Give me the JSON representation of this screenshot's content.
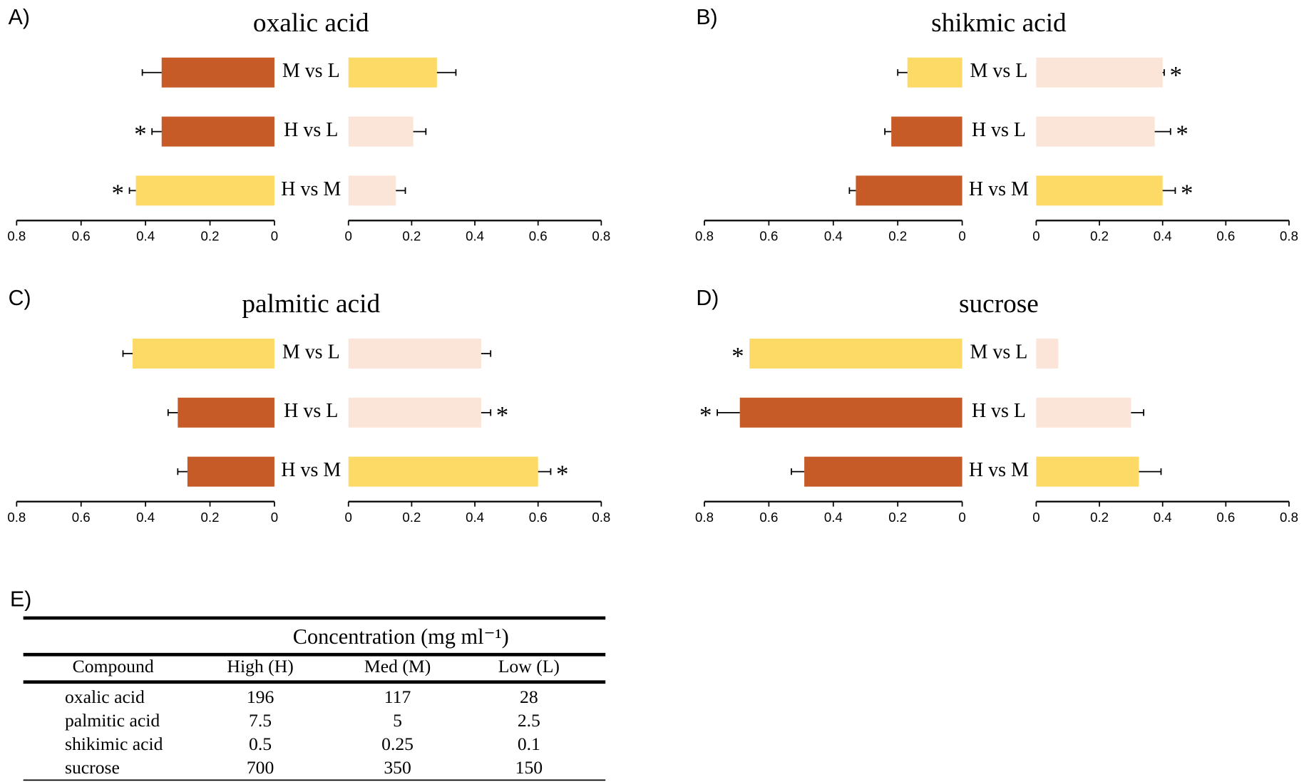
{
  "chart_data": [
    {
      "type": "diverging-bar",
      "panel": "A)",
      "title": "oxalic acid",
      "categories": [
        "M vs L",
        "H vs L",
        "H vs M"
      ],
      "left": {
        "xlim": [
          0.8,
          0
        ],
        "xticks": [
          0.8,
          0.6,
          0.4,
          0.2,
          0
        ],
        "values": [
          0.35,
          0.35,
          0.43
        ],
        "errors": [
          0.06,
          0.03,
          0.02
        ],
        "colors": [
          "#c65b28",
          "#c65b28",
          "#fdd966"
        ],
        "markers": [
          null,
          "*",
          "*"
        ]
      },
      "right": {
        "xlim": [
          0,
          0.8
        ],
        "xticks": [
          0,
          0.2,
          0.4,
          0.6,
          0.8
        ],
        "values": [
          0.28,
          0.205,
          0.15
        ],
        "errors": [
          0.06,
          0.04,
          0.03
        ],
        "colors": [
          "#fdd966",
          "#fbe5d8",
          "#fbe5d8"
        ],
        "markers": [
          null,
          null,
          null
        ]
      }
    },
    {
      "type": "diverging-bar",
      "panel": "B)",
      "title": "shikmic acid",
      "categories": [
        "M vs L",
        "H vs L",
        "H vs M"
      ],
      "left": {
        "xlim": [
          0.8,
          0
        ],
        "xticks": [
          0.8,
          0.6,
          0.4,
          0.2,
          0
        ],
        "values": [
          0.17,
          0.22,
          0.33
        ],
        "errors": [
          0.03,
          0.02,
          0.02
        ],
        "colors": [
          "#fdd966",
          "#c65b28",
          "#c65b28"
        ],
        "markers": [
          null,
          null,
          null
        ]
      },
      "right": {
        "xlim": [
          0,
          0.8
        ],
        "xticks": [
          0,
          0.2,
          0.4,
          0.6,
          0.8
        ],
        "values": [
          0.4,
          0.375,
          0.4
        ],
        "errors": [
          0.005,
          0.05,
          0.04
        ],
        "colors": [
          "#fbe5d8",
          "#fbe5d8",
          "#fdd966"
        ],
        "markers": [
          "*",
          "*",
          "*"
        ]
      }
    },
    {
      "type": "diverging-bar",
      "panel": "C)",
      "title": "palmitic acid",
      "categories": [
        "M vs L",
        "H vs L",
        "H vs M"
      ],
      "left": {
        "xlim": [
          0.8,
          0
        ],
        "xticks": [
          0.8,
          0.6,
          0.4,
          0.2,
          0
        ],
        "values": [
          0.44,
          0.3,
          0.27
        ],
        "errors": [
          0.03,
          0.03,
          0.03
        ],
        "colors": [
          "#fdd966",
          "#c65b28",
          "#c65b28"
        ],
        "markers": [
          null,
          null,
          null
        ]
      },
      "right": {
        "xlim": [
          0,
          0.8
        ],
        "xticks": [
          0,
          0.2,
          0.4,
          0.6,
          0.8
        ],
        "values": [
          0.42,
          0.42,
          0.6
        ],
        "errors": [
          0.03,
          0.03,
          0.04
        ],
        "colors": [
          "#fbe5d8",
          "#fbe5d8",
          "#fdd966"
        ],
        "markers": [
          null,
          "*",
          "*"
        ]
      }
    },
    {
      "type": "diverging-bar",
      "panel": "D)",
      "title": "sucrose",
      "categories": [
        "M vs L",
        "H vs L",
        "H vs M"
      ],
      "left": {
        "xlim": [
          0.8,
          0
        ],
        "xticks": [
          0.8,
          0.6,
          0.4,
          0.2,
          0
        ],
        "values": [
          0.66,
          0.69,
          0.49
        ],
        "errors": [
          null,
          0.07,
          0.04
        ],
        "colors": [
          "#fdd966",
          "#c65b28",
          "#c65b28"
        ],
        "markers": [
          "*",
          "*",
          null
        ]
      },
      "right": {
        "xlim": [
          0,
          0.8
        ],
        "xticks": [
          0,
          0.2,
          0.4,
          0.6,
          0.8
        ],
        "values": [
          0.07,
          0.3,
          0.325
        ],
        "errors": [
          null,
          0.04,
          0.07
        ],
        "colors": [
          "#fbe5d8",
          "#fbe5d8",
          "#fdd966"
        ],
        "markers": [
          null,
          null,
          null
        ]
      }
    }
  ],
  "table": {
    "panel": "E)",
    "title": "Concentration (mg ml⁻¹)",
    "columns": [
      "Compound",
      "High (H)",
      "Med (M)",
      "Low (L)"
    ],
    "rows": [
      [
        "oxalic acid",
        "196",
        "117",
        "28"
      ],
      [
        "palmitic acid",
        "7.5",
        "5",
        "2.5"
      ],
      [
        "shikimic acid",
        "0.5",
        "0.25",
        "0.1"
      ],
      [
        "sucrose",
        "700",
        "350",
        "150"
      ]
    ]
  }
}
